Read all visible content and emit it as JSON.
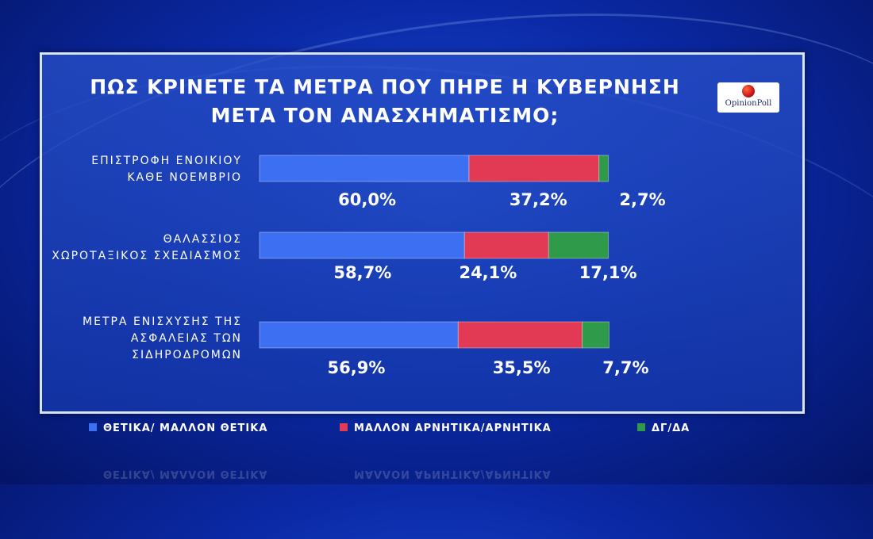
{
  "title_lines": [
    "ΠΩΣ ΚΡΙΝΕΤΕ ΤΑ ΜΕΤΡΑ ΠΟΥ ΠΗΡΕ Η ΚΥΒΕΡΝΗΣΗ",
    "ΜΕΤΑ ΤΟΝ ΑΝΑΣΧΗΜΑΤΙΣΜΟ;"
  ],
  "logo_text": "OpinionPoll",
  "colors": {
    "positive": "#3d6ff2",
    "negative": "#e23a55",
    "dk": "#2e9a4a"
  },
  "chart_data": {
    "type": "bar",
    "orientation": "horizontal",
    "stacked": true,
    "categories": [
      "ΕΠΙΣΤΡΟΦΗ ΕΝΟΙΚΙΟΥ\nΚΑΘΕ ΝΟΕΜΒΡΙΟ",
      "ΘΑΛΑΣΣΙΟΣ\nΧΩΡΟΤΑΞΙΚΟΣ ΣΧΕΔΙΑΣΜΟΣ",
      "ΜΕΤΡΑ ΕΝΙΣΧΥΣΗΣ ΤΗΣ\nΑΣΦΑΛΕΙΑΣ ΤΩΝ\nΣΙΔΗΡΟΔΡΟΜΩΝ"
    ],
    "series": [
      {
        "name": "ΘΕΤΙΚΑ/  ΜΑΛΛΟΝ  ΘΕΤΙΚΑ",
        "values": [
          60.0,
          58.7,
          56.9
        ],
        "labels": [
          "60,0%",
          "58,7%",
          "56,9%"
        ]
      },
      {
        "name": "ΜΑΛΛΟΝ  ΑΡΝΗΤΙΚΑ/ΑΡΝΗΤΙΚΑ",
        "values": [
          37.2,
          24.1,
          35.5
        ],
        "labels": [
          "37,2%",
          "24,1%",
          "35,5%"
        ]
      },
      {
        "name": "ΔΓ/ΔΑ",
        "values": [
          2.7,
          17.1,
          7.7
        ],
        "labels": [
          "2,7%",
          "17,1%",
          "7,7%"
        ]
      }
    ],
    "legend_position": "bottom"
  }
}
